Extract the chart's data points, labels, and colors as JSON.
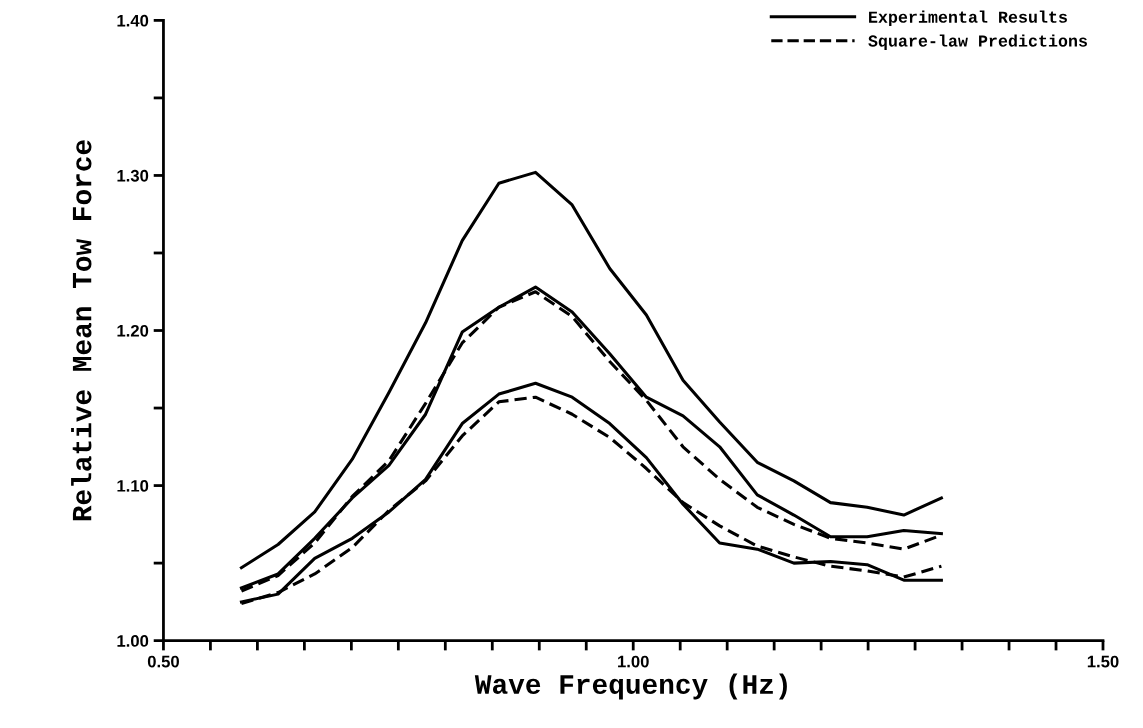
{
  "chart_data": {
    "type": "line",
    "xlabel": "Wave Frequency (Hz)",
    "ylabel": "Relative Mean Tow Force",
    "x": [
      0.583,
      0.622,
      0.661,
      0.701,
      0.74,
      0.779,
      0.818,
      0.857,
      0.896,
      0.935,
      0.975,
      1.014,
      1.053,
      1.092,
      1.132,
      1.171,
      1.21,
      1.249,
      1.288,
      1.328
    ],
    "series": [
      {
        "name": "Experimental Results",
        "color": "#000000",
        "line_style": "solid",
        "values": [
          1.047,
          1.062,
          1.083,
          1.117,
          1.16,
          1.205,
          1.258,
          1.295,
          1.302,
          1.281,
          1.24,
          1.21,
          1.168,
          1.141,
          1.115,
          1.103,
          1.089,
          1.086,
          1.081,
          1.092
        ]
      },
      {
        "color": "#000000",
        "line_style": "solid",
        "values": [
          1.034,
          1.043,
          1.066,
          1.092,
          1.113,
          1.146,
          1.199,
          1.215,
          1.228,
          1.212,
          1.185,
          1.157,
          1.145,
          1.125,
          1.094,
          1.081,
          1.067,
          1.067,
          1.071,
          1.069
        ]
      },
      {
        "color": "#000000",
        "line_style": "solid",
        "values": [
          1.025,
          1.03,
          1.053,
          1.066,
          1.083,
          1.104,
          1.14,
          1.159,
          1.166,
          1.157,
          1.14,
          1.118,
          1.088,
          1.063,
          1.059,
          1.05,
          1.051,
          1.049,
          1.039,
          1.039
        ]
      },
      {
        "name": "Square-law Predictions",
        "color": "#000000",
        "line_style": "dashed",
        "values": [
          1.032,
          1.042,
          1.063,
          1.093,
          1.116,
          1.153,
          1.192,
          1.215,
          1.225,
          1.209,
          1.18,
          1.155,
          1.125,
          1.104,
          1.086,
          1.075,
          1.066,
          1.063,
          1.059,
          1.068
        ]
      },
      {
        "color": "#000000",
        "line_style": "dashed",
        "values": [
          1.024,
          1.031,
          1.043,
          1.06,
          1.084,
          1.103,
          1.132,
          1.154,
          1.157,
          1.146,
          1.131,
          1.111,
          1.089,
          1.074,
          1.061,
          1.054,
          1.048,
          1.045,
          1.041,
          1.048
        ]
      }
    ],
    "xlim": [
      0.5,
      1.5
    ],
    "xticks": [
      {
        "value": 0.5,
        "label": "0.50"
      },
      {
        "value": 0.55,
        "label": null
      },
      {
        "value": 0.6,
        "label": null
      },
      {
        "value": 0.65,
        "label": null
      },
      {
        "value": 0.7,
        "label": null
      },
      {
        "value": 0.75,
        "label": null
      },
      {
        "value": 0.8,
        "label": null
      },
      {
        "value": 0.85,
        "label": null
      },
      {
        "value": 0.9,
        "label": null
      },
      {
        "value": 0.95,
        "label": null
      },
      {
        "value": 1.0,
        "label": "1.00"
      },
      {
        "value": 1.05,
        "label": null
      },
      {
        "value": 1.1,
        "label": null
      },
      {
        "value": 1.15,
        "label": null
      },
      {
        "value": 1.2,
        "label": null
      },
      {
        "value": 1.25,
        "label": null
      },
      {
        "value": 1.3,
        "label": null
      },
      {
        "value": 1.35,
        "label": null
      },
      {
        "value": 1.4,
        "label": null
      },
      {
        "value": 1.45,
        "label": null
      },
      {
        "value": 1.5,
        "label": "1.50"
      }
    ],
    "ylim": [
      1.0,
      1.4
    ],
    "yticks": [
      {
        "value": 1.0,
        "label": "1.00"
      },
      {
        "value": 1.05,
        "label": null
      },
      {
        "value": 1.1,
        "label": "1.10"
      },
      {
        "value": 1.15,
        "label": null
      },
      {
        "value": 1.2,
        "label": "1.20"
      },
      {
        "value": 1.25,
        "label": null
      },
      {
        "value": 1.3,
        "label": "1.30"
      },
      {
        "value": 1.35,
        "label": null
      },
      {
        "value": 1.4,
        "label": "1.40"
      }
    ],
    "legend": "top right",
    "grid": false,
    "marker": "none"
  }
}
